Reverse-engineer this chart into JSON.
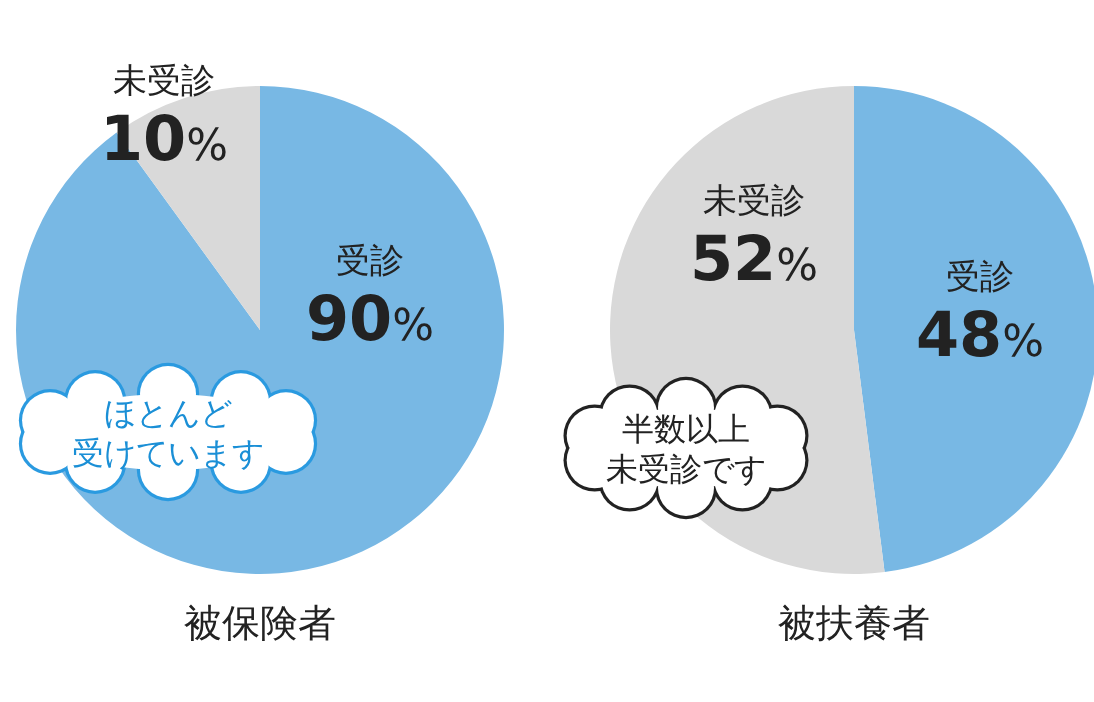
{
  "chart_data": [
    {
      "type": "pie",
      "title": "被保険者",
      "categories": [
        "受診",
        "未受診"
      ],
      "values": [
        90,
        10
      ],
      "value_labels": [
        "90%",
        "10%"
      ],
      "colors": [
        "#78b8e4",
        "#d9d9d9"
      ],
      "annotations": [
        "ほとんど受けています"
      ]
    },
    {
      "type": "pie",
      "title": "被扶養者",
      "categories": [
        "受診",
        "未受診"
      ],
      "values": [
        48,
        52
      ],
      "value_labels": [
        "48%",
        "52%"
      ],
      "colors": [
        "#78b8e4",
        "#d9d9d9"
      ],
      "annotations": [
        "半数以上未受診です"
      ]
    }
  ]
}
